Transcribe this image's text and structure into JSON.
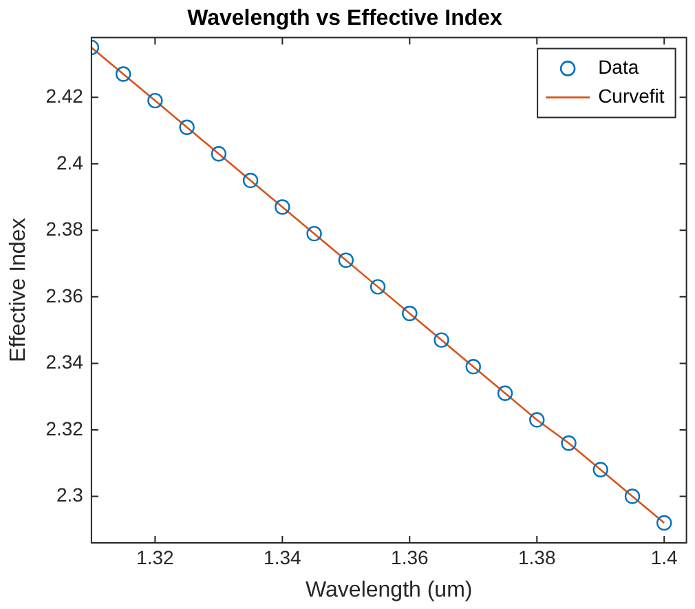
{
  "chart_data": {
    "type": "scatter",
    "title": "Wavelength vs Effective Index",
    "xlabel": "Wavelength (um)",
    "ylabel": "Effective Index",
    "x": [
      1.31,
      1.315,
      1.32,
      1.325,
      1.33,
      1.335,
      1.34,
      1.345,
      1.35,
      1.355,
      1.36,
      1.365,
      1.37,
      1.375,
      1.38,
      1.385,
      1.39,
      1.395,
      1.4
    ],
    "series": [
      {
        "name": "Data",
        "color": "#0072bd",
        "marker": "circle",
        "values": [
          2.435,
          2.427,
          2.419,
          2.411,
          2.403,
          2.395,
          2.387,
          2.379,
          2.371,
          2.363,
          2.355,
          2.347,
          2.339,
          2.331,
          2.323,
          2.316,
          2.308,
          2.3,
          2.292
        ]
      },
      {
        "name": "Curvefit",
        "type": "line",
        "color": "#d95319",
        "marker": "none",
        "values": [
          2.435,
          2.427,
          2.419,
          2.411,
          2.403,
          2.395,
          2.387,
          2.379,
          2.371,
          2.363,
          2.355,
          2.347,
          2.339,
          2.331,
          2.323,
          2.316,
          2.308,
          2.3,
          2.292
        ]
      }
    ],
    "xlim": [
      1.31,
      1.4035
    ],
    "xticks": [
      1.32,
      1.34,
      1.36,
      1.38,
      1.4
    ],
    "ylim": [
      2.286,
      2.438
    ],
    "yticks": [
      2.3,
      2.32,
      2.34,
      2.36,
      2.38,
      2.4,
      2.42
    ],
    "grid": false,
    "legend": "top right"
  }
}
